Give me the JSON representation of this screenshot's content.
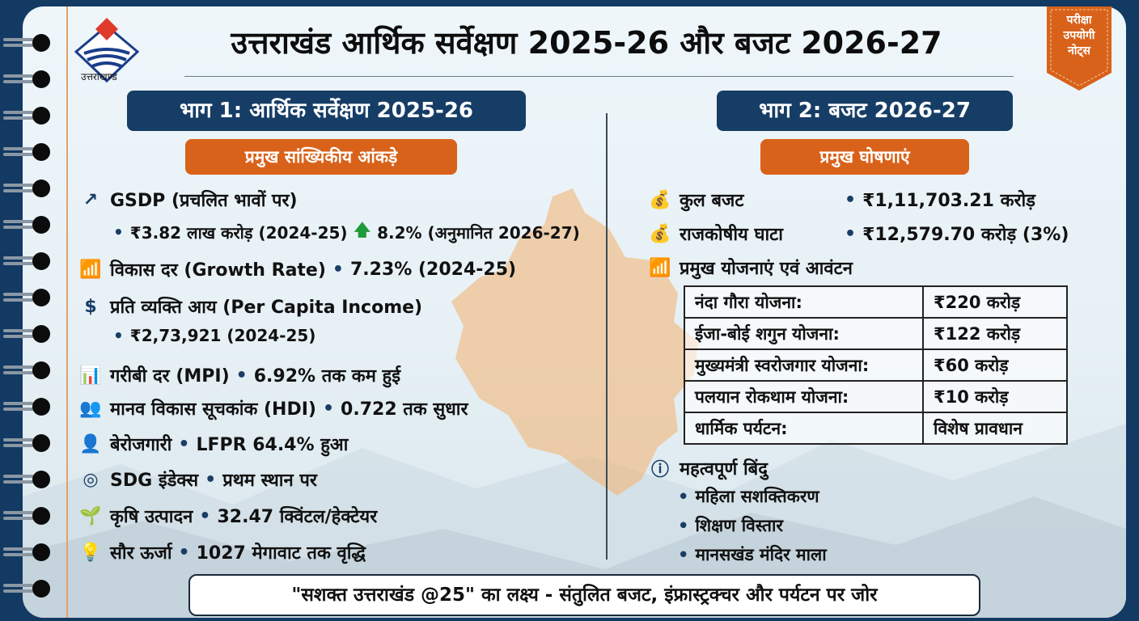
{
  "logo": {
    "text": "उत्तराखण्ड"
  },
  "title": "उत्तराखंड आर्थिक सर्वेक्षण 2025-26 और बजट 2026-27",
  "badge": {
    "lines": [
      "परीक्षा",
      "उपयोगी",
      "नोट्स"
    ],
    "color": "#d9621a"
  },
  "colors": {
    "navy": "#163d66",
    "orange": "#d9621a",
    "frame": "#123a63"
  },
  "part1": {
    "heading": "भाग 1: आर्थिक सर्वेक्षण 2025-26",
    "subheading": "प्रमुख सांख्यिकीय आंकड़े",
    "gsdp": {
      "icon": "trend-up-icon",
      "label": "GSDP (प्रचलित भावों पर)",
      "value": "₹3.82 लाख करोड़ (2024-25)",
      "growth": "8.2% (अनुमानित 2026-27)"
    },
    "growth": {
      "icon": "bar-chart-icon",
      "label": "विकास दर (Growth Rate)",
      "value": "7.23% (2024-25)"
    },
    "pci": {
      "icon": "money-hand-icon",
      "label": "प्रति व्यक्ति आय (Per Capita Income)",
      "value": "₹2,73,921 (2024-25)"
    },
    "items": [
      {
        "icon": "poverty-chart-icon",
        "label": "गरीबी दर (MPI)",
        "value": "6.92% तक कम हुई"
      },
      {
        "icon": "people-graduation-icon",
        "label": "मानव विकास सूचकांक (HDI)",
        "value": "0.722 तक सुधार"
      },
      {
        "icon": "worker-icon",
        "label": "बेरोजगारी",
        "value": "LFPR 64.4% हुआ"
      },
      {
        "icon": "sdg-wheel-icon",
        "label": "SDG इंडेक्स",
        "value": "प्रथम स्थान पर"
      },
      {
        "icon": "plant-icon",
        "label": "कृषि उत्पादन",
        "value": "32.47 क्विंटल/हेक्टेयर"
      },
      {
        "icon": "bulb-icon",
        "label": "सौर ऊर्जा",
        "value": "1027 मेगावाट तक वृद्धि"
      }
    ]
  },
  "part2": {
    "heading": "भाग 2: बजट 2026-27",
    "subheading": "प्रमुख घोषणाएं",
    "budget": {
      "icon": "money-bag-icon",
      "label": "कुल बजट",
      "value": "₹1,11,703.21 करोड़"
    },
    "deficit": {
      "icon": "money-bag-icon",
      "label": "राजकोषीय घाटा",
      "value": "₹12,579.70 करोड़ (3%)"
    },
    "schemes_heading": "प्रमुख योजनाएं एवं आवंटन",
    "schemes": [
      {
        "name": "नंदा गौरा योजना:",
        "amount": "₹220 करोड़"
      },
      {
        "name": "ईजा-बोई शगुन योजना:",
        "amount": "₹122 करोड़"
      },
      {
        "name": "मुख्यमंत्री स्वरोजगार योजना:",
        "amount": "₹60 करोड़"
      },
      {
        "name": "पलयान रोकथाम योजना:",
        "amount": "₹10 करोड़"
      },
      {
        "name": "धार्मिक पर्यटन:",
        "amount": "विशेष प्रावधान"
      }
    ],
    "points_heading": "महत्वपूर्ण बिंदु",
    "points": [
      "महिला सशक्तिकरण",
      "शिक्षण विस्तार",
      "मानसखंड मंदिर माला"
    ]
  },
  "banner": "\"सशक्त उत्तराखंड @25\" का लक्ष्य - संतुलित बजट, इंफ्रास्ट्रक्चर और पर्यटन पर जोर"
}
